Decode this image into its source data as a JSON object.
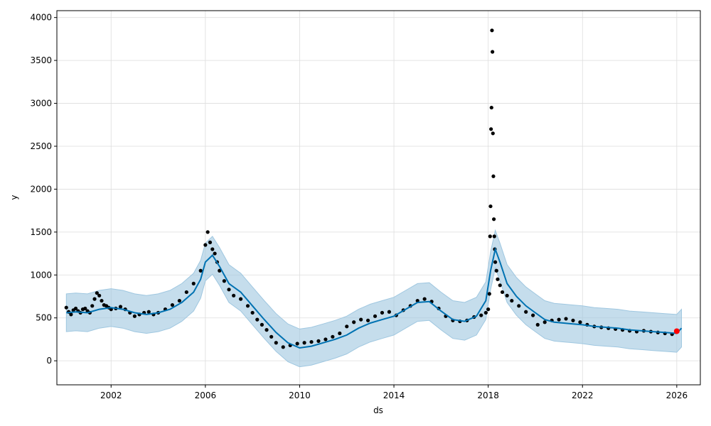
{
  "chart_data": {
    "type": "scatter",
    "xlabel": "ds",
    "ylabel": "y",
    "xlim": [
      1999.7,
      2027.0
    ],
    "ylim": [
      -280,
      4080
    ],
    "grid": true,
    "x_ticks": [
      2002,
      2006,
      2010,
      2014,
      2018,
      2022,
      2026
    ],
    "y_ticks": [
      0,
      500,
      1000,
      1500,
      2000,
      2500,
      3000,
      3500,
      4000
    ],
    "colors": {
      "observed": "#000000",
      "forecast": "#0072B2",
      "interval": "#9fc7e0",
      "last_point": "#ff0000",
      "grid": "#dddddd"
    },
    "series": [
      {
        "name": "",
        "kind": "observed",
        "x": [
          2000.1,
          2000.2,
          2000.3,
          2000.4,
          2000.5,
          2000.6,
          2000.7,
          2000.8,
          2000.9,
          2001.0,
          2001.1,
          2001.2,
          2001.3,
          2001.4,
          2001.5,
          2001.6,
          2001.7,
          2001.8,
          2001.9,
          2002.0,
          2002.2,
          2002.4,
          2002.6,
          2002.8,
          2003.0,
          2003.2,
          2003.4,
          2003.6,
          2003.8,
          2004.0,
          2004.3,
          2004.6,
          2004.9,
          2005.2,
          2005.5,
          2005.8,
          2006.0,
          2006.1,
          2006.2,
          2006.3,
          2006.4,
          2006.5,
          2006.6,
          2006.8,
          2007.0,
          2007.2,
          2007.5,
          2007.8,
          2008.0,
          2008.2,
          2008.4,
          2008.6,
          2008.8,
          2009.0,
          2009.3,
          2009.6,
          2009.9,
          2010.2,
          2010.5,
          2010.8,
          2011.1,
          2011.4,
          2011.7,
          2012.0,
          2012.3,
          2012.6,
          2012.9,
          2013.2,
          2013.5,
          2013.8,
          2014.1,
          2014.4,
          2014.7,
          2015.0,
          2015.3,
          2015.6,
          2015.9,
          2016.2,
          2016.5,
          2016.8,
          2017.1,
          2017.4,
          2017.7,
          2017.9,
          2018.0,
          2018.05,
          2018.08,
          2018.1,
          2018.12,
          2018.14,
          2018.16,
          2018.18,
          2018.2,
          2018.22,
          2018.24,
          2018.26,
          2018.28,
          2018.3,
          2018.35,
          2018.4,
          2018.5,
          2018.6,
          2018.8,
          2019.0,
          2019.3,
          2019.6,
          2019.9,
          2020.1,
          2020.4,
          2020.7,
          2021.0,
          2021.3,
          2021.6,
          2021.9,
          2022.2,
          2022.5,
          2022.8,
          2023.1,
          2023.4,
          2023.7,
          2024.0,
          2024.3,
          2024.6,
          2024.9,
          2025.2,
          2025.5,
          2025.8
        ],
        "y": [
          620,
          570,
          540,
          590,
          610,
          580,
          560,
          600,
          610,
          580,
          560,
          640,
          720,
          790,
          760,
          700,
          650,
          640,
          620,
          600,
          610,
          630,
          600,
          560,
          520,
          540,
          560,
          570,
          540,
          560,
          600,
          650,
          700,
          800,
          900,
          1050,
          1350,
          1500,
          1380,
          1300,
          1250,
          1150,
          1050,
          930,
          830,
          760,
          720,
          640,
          560,
          480,
          420,
          360,
          280,
          210,
          160,
          180,
          200,
          210,
          220,
          230,
          250,
          280,
          320,
          400,
          450,
          480,
          470,
          520,
          560,
          570,
          530,
          590,
          640,
          700,
          720,
          690,
          610,
          520,
          470,
          460,
          470,
          510,
          530,
          560,
          600,
          780,
          1450,
          1800,
          2700,
          2950,
          3850,
          3600,
          2650,
          2150,
          1650,
          1450,
          1300,
          1150,
          1050,
          950,
          880,
          800,
          760,
          700,
          640,
          570,
          530,
          420,
          450,
          470,
          480,
          490,
          470,
          450,
          420,
          400,
          390,
          380,
          370,
          360,
          350,
          340,
          350,
          340,
          330,
          320,
          310
        ]
      },
      {
        "name": "",
        "kind": "forecast",
        "x": [
          2000.1,
          2000.5,
          2001.0,
          2001.5,
          2002.0,
          2002.5,
          2003.0,
          2003.5,
          2004.0,
          2004.5,
          2005.0,
          2005.5,
          2005.8,
          2006.0,
          2006.3,
          2006.6,
          2007.0,
          2007.5,
          2008.0,
          2008.5,
          2009.0,
          2009.5,
          2010.0,
          2010.5,
          2011.0,
          2011.5,
          2012.0,
          2012.5,
          2013.0,
          2013.5,
          2014.0,
          2014.5,
          2015.0,
          2015.5,
          2016.0,
          2016.5,
          2017.0,
          2017.5,
          2017.9,
          2018.1,
          2018.3,
          2018.5,
          2018.8,
          2019.2,
          2019.6,
          2020.0,
          2020.4,
          2020.8,
          2021.2,
          2021.6,
          2022.0,
          2022.5,
          2023.0,
          2023.5,
          2024.0,
          2024.5,
          2025.0,
          2025.5,
          2026.0,
          2026.2
        ],
        "y": [
          560,
          570,
          560,
          600,
          620,
          600,
          560,
          540,
          560,
          600,
          680,
          800,
          950,
          1150,
          1230,
          1100,
          900,
          800,
          640,
          480,
          330,
          210,
          150,
          170,
          210,
          250,
          300,
          380,
          440,
          480,
          520,
          600,
          680,
          690,
          580,
          480,
          460,
          520,
          700,
          1050,
          1300,
          1150,
          900,
          750,
          640,
          560,
          480,
          450,
          440,
          430,
          420,
          400,
          390,
          380,
          360,
          350,
          340,
          330,
          320,
          380
        ]
      },
      {
        "name": "",
        "kind": "interval_upper",
        "x": [
          2000.1,
          2000.5,
          2001.0,
          2001.5,
          2002.0,
          2002.5,
          2003.0,
          2003.5,
          2004.0,
          2004.5,
          2005.0,
          2005.5,
          2005.8,
          2006.0,
          2006.3,
          2006.6,
          2007.0,
          2007.5,
          2008.0,
          2008.5,
          2009.0,
          2009.5,
          2010.0,
          2010.5,
          2011.0,
          2011.5,
          2012.0,
          2012.5,
          2013.0,
          2013.5,
          2014.0,
          2014.5,
          2015.0,
          2015.5,
          2016.0,
          2016.5,
          2017.0,
          2017.5,
          2017.9,
          2018.1,
          2018.3,
          2018.5,
          2018.8,
          2019.2,
          2019.6,
          2020.0,
          2020.4,
          2020.8,
          2021.2,
          2021.6,
          2022.0,
          2022.5,
          2023.0,
          2023.5,
          2024.0,
          2024.5,
          2025.0,
          2025.5,
          2026.0,
          2026.2
        ],
        "y": [
          780,
          790,
          780,
          820,
          840,
          820,
          780,
          760,
          780,
          820,
          900,
          1020,
          1170,
          1370,
          1450,
          1320,
          1120,
          1020,
          860,
          700,
          550,
          430,
          370,
          390,
          430,
          470,
          520,
          600,
          660,
          700,
          740,
          820,
          900,
          910,
          800,
          700,
          680,
          740,
          920,
          1270,
          1520,
          1370,
          1120,
          970,
          860,
          780,
          700,
          670,
          660,
          650,
          640,
          620,
          610,
          600,
          580,
          570,
          560,
          550,
          540,
          600
        ]
      },
      {
        "name": "",
        "kind": "interval_lower",
        "x": [
          2000.1,
          2000.5,
          2001.0,
          2001.5,
          2002.0,
          2002.5,
          2003.0,
          2003.5,
          2004.0,
          2004.5,
          2005.0,
          2005.5,
          2005.8,
          2006.0,
          2006.3,
          2006.6,
          2007.0,
          2007.5,
          2008.0,
          2008.5,
          2009.0,
          2009.5,
          2010.0,
          2010.5,
          2011.0,
          2011.5,
          2012.0,
          2012.5,
          2013.0,
          2013.5,
          2014.0,
          2014.5,
          2015.0,
          2015.5,
          2016.0,
          2016.5,
          2017.0,
          2017.5,
          2017.9,
          2018.1,
          2018.3,
          2018.5,
          2018.8,
          2019.2,
          2019.6,
          2020.0,
          2020.4,
          2020.8,
          2021.2,
          2021.6,
          2022.0,
          2022.5,
          2023.0,
          2023.5,
          2024.0,
          2024.5,
          2025.0,
          2025.5,
          2026.0,
          2026.2
        ],
        "y": [
          340,
          350,
          340,
          380,
          400,
          380,
          340,
          320,
          340,
          380,
          460,
          580,
          730,
          930,
          1010,
          880,
          680,
          580,
          420,
          260,
          110,
          -10,
          -70,
          -50,
          -10,
          30,
          80,
          160,
          220,
          260,
          300,
          380,
          460,
          470,
          360,
          260,
          240,
          300,
          480,
          830,
          1080,
          930,
          680,
          530,
          420,
          340,
          260,
          230,
          220,
          210,
          200,
          180,
          170,
          160,
          140,
          130,
          120,
          110,
          100,
          160
        ]
      },
      {
        "name": "",
        "kind": "last_point",
        "x": [
          2026.0
        ],
        "y": [
          345
        ]
      }
    ]
  }
}
